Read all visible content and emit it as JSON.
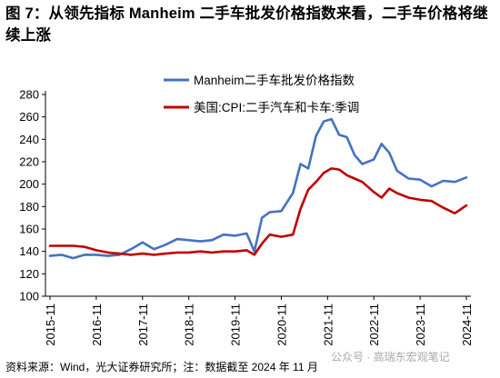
{
  "title": "图 7：从领先指标 Manheim 二手车批发价格指数来看，二手车价格将继续上涨",
  "source": "资料来源：Wind，光大证券研究所；注：数据截至 2024 年 11 月",
  "watermark": "公众号 · 高瑞东宏观笔记",
  "colors": {
    "manheim": "#4472C4",
    "cpi": "#C00000",
    "axis": "#000000"
  },
  "chart_data": {
    "type": "line",
    "title": "",
    "xlabel": "",
    "ylabel": "",
    "ylim": [
      100,
      280
    ],
    "yticks": [
      100,
      120,
      140,
      160,
      180,
      200,
      220,
      240,
      260,
      280
    ],
    "xticks": [
      "2015-11",
      "2016-11",
      "2017-11",
      "2018-11",
      "2019-11",
      "2020-11",
      "2021-11",
      "2022-11",
      "2023-11",
      "2024-11"
    ],
    "grid": false,
    "legend_position": "top-center",
    "series": [
      {
        "name": "Manheim二手车批发价格指数",
        "color": "#4472C4",
        "points": [
          [
            "2015-11",
            136
          ],
          [
            "2016-02",
            137
          ],
          [
            "2016-05",
            134
          ],
          [
            "2016-08",
            137
          ],
          [
            "2016-11",
            137
          ],
          [
            "2017-02",
            136
          ],
          [
            "2017-05",
            137
          ],
          [
            "2017-08",
            142
          ],
          [
            "2017-11",
            148
          ],
          [
            "2018-02",
            142
          ],
          [
            "2018-05",
            146
          ],
          [
            "2018-08",
            151
          ],
          [
            "2018-11",
            150
          ],
          [
            "2019-02",
            149
          ],
          [
            "2019-05",
            150
          ],
          [
            "2019-08",
            155
          ],
          [
            "2019-11",
            154
          ],
          [
            "2020-02",
            156
          ],
          [
            "2020-04",
            140
          ],
          [
            "2020-06",
            170
          ],
          [
            "2020-08",
            175
          ],
          [
            "2020-11",
            176
          ],
          [
            "2021-02",
            192
          ],
          [
            "2021-04",
            218
          ],
          [
            "2021-06",
            214
          ],
          [
            "2021-08",
            243
          ],
          [
            "2021-10",
            256
          ],
          [
            "2021-12",
            258
          ],
          [
            "2022-02",
            244
          ],
          [
            "2022-04",
            242
          ],
          [
            "2022-06",
            226
          ],
          [
            "2022-08",
            218
          ],
          [
            "2022-11",
            222
          ],
          [
            "2023-01",
            236
          ],
          [
            "2023-03",
            228
          ],
          [
            "2023-05",
            212
          ],
          [
            "2023-08",
            205
          ],
          [
            "2023-11",
            204
          ],
          [
            "2024-02",
            198
          ],
          [
            "2024-05",
            203
          ],
          [
            "2024-08",
            202
          ],
          [
            "2024-11",
            206
          ]
        ]
      },
      {
        "name": "美国:CPI:二手汽车和卡车:季调",
        "color": "#C00000",
        "points": [
          [
            "2015-11",
            145
          ],
          [
            "2016-02",
            145
          ],
          [
            "2016-05",
            145
          ],
          [
            "2016-08",
            144
          ],
          [
            "2016-11",
            141
          ],
          [
            "2017-02",
            139
          ],
          [
            "2017-05",
            138
          ],
          [
            "2017-08",
            137
          ],
          [
            "2017-11",
            138
          ],
          [
            "2018-02",
            137
          ],
          [
            "2018-05",
            138
          ],
          [
            "2018-08",
            139
          ],
          [
            "2018-11",
            139
          ],
          [
            "2019-02",
            140
          ],
          [
            "2019-05",
            139
          ],
          [
            "2019-08",
            140
          ],
          [
            "2019-11",
            140
          ],
          [
            "2020-02",
            141
          ],
          [
            "2020-04",
            137
          ],
          [
            "2020-06",
            147
          ],
          [
            "2020-08",
            155
          ],
          [
            "2020-11",
            153
          ],
          [
            "2021-02",
            155
          ],
          [
            "2021-04",
            178
          ],
          [
            "2021-06",
            195
          ],
          [
            "2021-08",
            202
          ],
          [
            "2021-10",
            210
          ],
          [
            "2021-12",
            214
          ],
          [
            "2022-02",
            213
          ],
          [
            "2022-04",
            208
          ],
          [
            "2022-06",
            205
          ],
          [
            "2022-08",
            202
          ],
          [
            "2022-11",
            193
          ],
          [
            "2023-01",
            188
          ],
          [
            "2023-03",
            196
          ],
          [
            "2023-05",
            192
          ],
          [
            "2023-08",
            188
          ],
          [
            "2023-11",
            186
          ],
          [
            "2024-02",
            185
          ],
          [
            "2024-05",
            179
          ],
          [
            "2024-08",
            174
          ],
          [
            "2024-11",
            181
          ]
        ]
      }
    ]
  }
}
